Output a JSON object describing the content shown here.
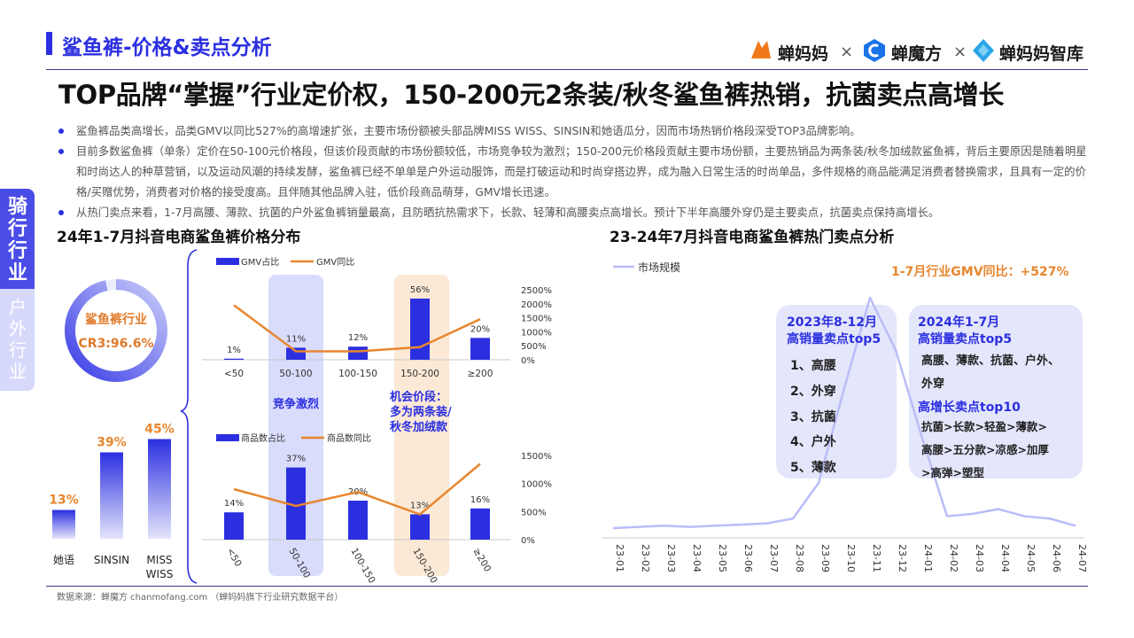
{
  "header": {
    "section_title": "鲨鱼裤-价格&卖点分析",
    "logos": [
      "蝉妈妈",
      "蝉魔方",
      "蝉妈妈智库"
    ],
    "logo_separator": "×"
  },
  "main_title": "TOP品牌“掌握”行业定价权，150-200元2条装/秋冬鲨鱼裤热销，抗菌卖点高增长",
  "bullets": [
    "鲨鱼裤品类高增长，品类GMV以同比527%的高增速扩张，主要市场份额被头部品牌MISS WISS、SINSIN和她语瓜分，因而市场热销价格段深受TOP3品牌影响。",
    "目前多数鲨鱼裤（单条）定价在50-100元价格段，但该价段贡献的市场份额较低，市场竞争较为激烈；150-200元价格段贡献主要市场份额，主要热销品为两条装/秋冬加绒款鲨鱼裤，背后主要原因是随着明星和时尚达人的种草营销，以及运动风潮的持续发酵，鲨鱼裤已经不单单是户外运动服饰，而是打破运动和时尚穿搭边界，成为融入日常生活的时尚单品，多件规格的商品能满足消费者替换需求，且具有一定的价格/买赠优势，消费者对价格的接受度高。且伴随其他品牌入驻，低价段商品萌芽，GMV增长迅速。",
    "从热门卖点来看，1-7月高腰、薄款、抗菌的户外鲨鱼裤销量最高，且防晒抗热需求下，长款、轻薄和高腰卖点高增长。预计下半年高腰外穿仍是主要卖点，抗菌卖点保持高增长。"
  ],
  "side_tag": {
    "primary": "骑行行业",
    "secondary": "户外行业"
  },
  "colors": {
    "accent": "#2b2fe0",
    "orange": "#e8862f",
    "light_purple": "#b9bdf7",
    "band_blue": "#d9dcfb",
    "band_orange": "#fbe9d6"
  },
  "left_chart_title": "24年1-7月抖音电商鲨鱼裤价格分布",
  "right_chart_title": "23-24年7月抖音电商鲨鱼裤热门卖点分析",
  "source": "数据来源：蝉魔方 chanmofang.com （蝉妈妈旗下行业研究数据平台）",
  "cr3": {
    "label": "鲨鱼裤行业",
    "value": "CR3:96.6%",
    "fraction": 0.966
  },
  "chart_data": [
    {
      "type": "bar",
      "id": "brand-share",
      "categories": [
        "她语",
        "SINSIN",
        "MISS WISS"
      ],
      "values": [
        13,
        39,
        45
      ],
      "labels": [
        "13%",
        "39%",
        "45%"
      ],
      "ylim": [
        0,
        50
      ]
    },
    {
      "type": "bar",
      "id": "gmv-price",
      "categories": [
        "<50",
        "50-100",
        "100-150",
        "150-200",
        "≥200"
      ],
      "series": [
        {
          "name": "GMV占比",
          "values": [
            1,
            11,
            12,
            56,
            20
          ],
          "labels": [
            "1%",
            "11%",
            "12%",
            "56%",
            "20%"
          ]
        },
        {
          "name": "GMV同比",
          "type": "line",
          "values": [
            1950,
            300,
            300,
            450,
            1450
          ]
        }
      ],
      "y2_ticks": [
        "2500%",
        "2000%",
        "1500%",
        "1000%",
        "500%",
        "0%"
      ],
      "y2lim": [
        0,
        2500
      ],
      "ylim": [
        0,
        60
      ]
    },
    {
      "type": "bar",
      "id": "count-price",
      "categories": [
        "<50",
        "50-100",
        "100-150",
        "150-200",
        "≥200"
      ],
      "series": [
        {
          "name": "商品数占比",
          "values": [
            14,
            37,
            20,
            13,
            16
          ],
          "labels": [
            "14%",
            "37%",
            "20%",
            "13%",
            "16%"
          ]
        },
        {
          "name": "商品数同比",
          "type": "line",
          "values": [
            900,
            600,
            850,
            450,
            1350
          ]
        }
      ],
      "y2_ticks": [
        "1500%",
        "1000%",
        "500%",
        "0%"
      ],
      "y2lim": [
        0,
        1500
      ],
      "ylim": [
        0,
        40
      ]
    },
    {
      "type": "line",
      "id": "market-scale",
      "series_name": "市场规模",
      "x": [
        "23-01",
        "23-02",
        "23-03",
        "23-04",
        "23-05",
        "23-06",
        "23-07",
        "23-08",
        "23-09",
        "23-10",
        "23-11",
        "23-12",
        "24-01",
        "24-02",
        "24-03",
        "24-04",
        "24-05",
        "24-06",
        "24-07"
      ],
      "values": [
        3,
        3.5,
        4,
        3.5,
        4,
        4.5,
        5,
        7,
        22,
        62,
        100,
        78,
        42,
        8,
        9,
        11,
        8,
        7,
        4
      ],
      "ylim": [
        0,
        100
      ]
    }
  ],
  "annotations": {
    "band_left": "竞争激烈",
    "band_right": [
      "机会价段：",
      "多为两条装/",
      "秋冬加绒款"
    ],
    "gmv_growth": "1-7月行业GMV同比：+527%",
    "box_2023": {
      "title": [
        "2023年8-12月",
        "高销量卖点top5"
      ],
      "items": [
        "1、高腰",
        "2、外穿",
        "3、抗菌",
        "4、户外",
        "5、薄款"
      ]
    },
    "box_2024": {
      "title": [
        "2024年1-7月",
        "高销量卖点top5"
      ],
      "top5": [
        "高腰、薄款、抗菌、户外、",
        "外穿"
      ],
      "title2": "高增长卖点top10",
      "top10": [
        "抗菌>长款>轻盈>薄款>",
        "高腰>五分款>凉感>加厚",
        ">高弹>塑型"
      ]
    }
  }
}
